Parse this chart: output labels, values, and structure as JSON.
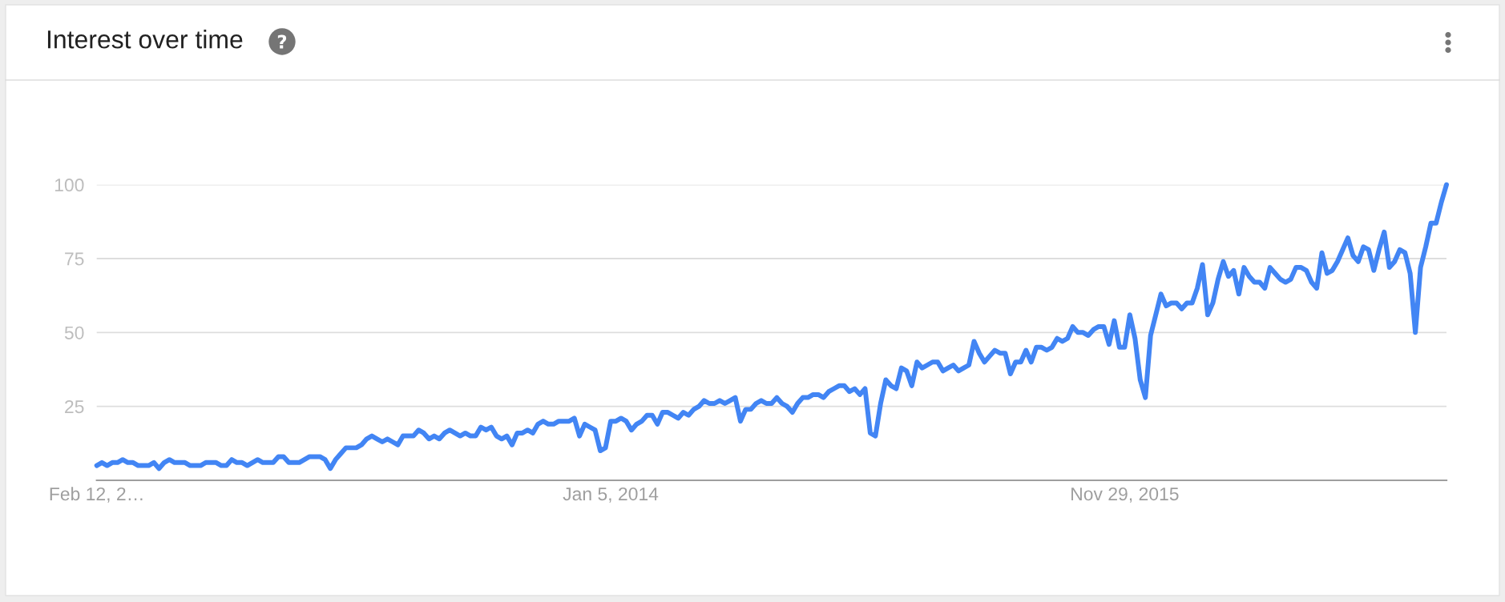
{
  "chart_data": {
    "type": "line",
    "title": "Interest over time",
    "x": [
      "2012-02-12",
      "2012-02-19",
      "2012-02-26",
      "2012-03-04",
      "2012-03-11",
      "2012-03-18",
      "2012-03-25",
      "2012-04-01",
      "2012-04-08",
      "2012-04-22",
      "2012-04-29",
      "2012-05-06",
      "2012-05-13",
      "2012-05-20",
      "2012-05-27",
      "2012-06-10",
      "2012-06-17",
      "2012-07-01",
      "2012-07-08",
      "2012-07-22",
      "2012-07-29",
      "2012-08-05",
      "2012-08-12",
      "2012-08-19",
      "2012-08-26",
      "2012-09-02",
      "2012-09-09",
      "2012-09-16",
      "2012-09-23",
      "2012-10-07",
      "2012-10-14",
      "2012-10-21",
      "2012-10-28",
      "2012-11-11",
      "2012-11-25",
      "2012-12-09",
      "2012-12-16",
      "2012-12-23",
      "2012-12-30",
      "2013-01-06",
      "2013-01-13",
      "2013-01-27",
      "2013-02-03",
      "2013-02-10",
      "2013-02-17",
      "2013-02-24",
      "2013-03-03",
      "2013-03-10",
      "2013-03-17",
      "2013-03-24",
      "2013-03-31",
      "2013-04-14",
      "2013-04-21",
      "2013-04-28",
      "2013-05-05",
      "2013-05-12",
      "2013-05-19",
      "2013-05-26",
      "2013-06-02",
      "2013-06-09",
      "2013-06-16",
      "2013-06-23",
      "2013-06-30",
      "2013-07-07",
      "2013-07-14",
      "2013-07-21",
      "2013-07-28",
      "2013-08-04",
      "2013-08-11",
      "2013-08-18",
      "2013-08-25",
      "2013-09-01",
      "2013-09-08",
      "2013-09-15",
      "2013-09-22",
      "2013-09-29",
      "2013-10-06",
      "2013-10-13",
      "2013-10-20",
      "2013-10-27",
      "2013-11-10",
      "2013-11-17",
      "2013-11-24",
      "2013-12-01",
      "2013-12-08",
      "2013-12-15",
      "2013-12-22",
      "2013-12-29",
      "2014-01-05",
      "2014-01-12",
      "2014-01-19",
      "2014-01-26",
      "2014-02-02",
      "2014-02-09",
      "2014-02-16",
      "2014-02-23",
      "2014-03-02",
      "2014-03-09",
      "2014-03-16",
      "2014-03-23",
      "2014-03-30",
      "2014-04-06",
      "2014-04-13",
      "2014-04-20",
      "2014-04-27",
      "2014-05-04",
      "2014-05-11",
      "2014-05-18",
      "2014-05-25",
      "2014-06-01",
      "2014-06-08",
      "2014-06-15",
      "2014-06-22",
      "2014-06-29",
      "2014-07-06",
      "2014-07-13",
      "2014-07-20",
      "2014-07-27",
      "2014-08-03",
      "2014-08-10",
      "2014-08-17",
      "2014-08-24",
      "2014-08-31",
      "2014-09-07",
      "2014-09-14",
      "2014-09-21",
      "2014-09-28",
      "2014-10-05",
      "2014-10-12",
      "2014-10-19",
      "2014-10-26",
      "2014-11-02",
      "2014-11-09",
      "2014-11-16",
      "2014-11-23",
      "2014-11-30",
      "2014-12-07",
      "2014-12-14",
      "2014-12-21",
      "2014-12-28",
      "2015-01-04",
      "2015-01-11",
      "2015-01-18",
      "2015-01-25",
      "2015-02-01",
      "2015-02-08",
      "2015-02-15",
      "2015-02-22",
      "2015-03-01",
      "2015-03-08",
      "2015-03-15",
      "2015-03-22",
      "2015-03-29",
      "2015-04-05",
      "2015-04-12",
      "2015-04-19",
      "2015-04-26",
      "2015-05-03",
      "2015-05-10",
      "2015-05-17",
      "2015-05-24",
      "2015-05-31",
      "2015-06-07",
      "2015-06-14",
      "2015-06-21",
      "2015-06-28",
      "2015-07-05",
      "2015-07-12",
      "2015-07-19",
      "2015-07-26",
      "2015-08-02",
      "2015-08-09",
      "2015-08-16",
      "2015-08-23",
      "2015-08-30",
      "2015-09-06",
      "2015-09-13",
      "2015-09-20",
      "2015-09-27",
      "2015-10-04",
      "2015-10-11",
      "2015-10-18",
      "2015-10-25",
      "2015-11-01",
      "2015-11-08",
      "2015-11-15",
      "2015-11-22",
      "2015-11-29",
      "2015-12-06",
      "2015-12-13",
      "2015-12-20",
      "2015-12-27",
      "2016-01-03",
      "2016-01-10",
      "2016-01-17",
      "2016-01-24",
      "2016-01-31",
      "2016-02-07",
      "2016-02-14",
      "2016-02-21",
      "2016-02-28",
      "2016-03-06",
      "2016-03-13",
      "2016-03-20",
      "2016-03-27",
      "2016-04-03",
      "2016-04-10",
      "2016-04-17",
      "2016-04-24",
      "2016-05-01",
      "2016-05-08",
      "2016-05-15",
      "2016-05-22",
      "2016-05-29",
      "2016-06-05",
      "2016-06-12",
      "2016-06-19",
      "2016-06-26",
      "2016-07-03",
      "2016-07-10",
      "2016-07-17",
      "2016-07-24",
      "2016-07-31",
      "2016-08-07",
      "2016-08-14",
      "2016-08-21",
      "2016-08-28",
      "2016-09-04",
      "2016-09-11",
      "2016-09-18",
      "2016-09-25",
      "2016-10-02",
      "2016-10-09",
      "2016-10-16",
      "2016-10-23",
      "2016-10-30",
      "2016-11-06",
      "2016-11-13",
      "2016-11-20",
      "2016-11-27",
      "2016-12-04",
      "2016-12-11",
      "2016-12-18",
      "2016-12-25",
      "2017-01-01",
      "2017-01-08",
      "2017-01-15",
      "2017-01-22",
      "2017-01-29",
      "2017-02-05"
    ],
    "values": [
      5,
      6,
      5,
      6,
      6,
      7,
      6,
      6,
      5,
      5,
      6,
      4,
      6,
      7,
      6,
      6,
      5,
      5,
      6,
      6,
      5,
      5,
      7,
      6,
      6,
      5,
      6,
      7,
      6,
      6,
      8,
      8,
      6,
      6,
      8,
      8,
      7,
      4,
      7,
      9,
      11,
      11,
      12,
      14,
      15,
      14,
      13,
      14,
      13,
      12,
      15,
      15,
      17,
      16,
      14,
      15,
      14,
      16,
      17,
      16,
      15,
      16,
      15,
      15,
      18,
      17,
      18,
      15,
      14,
      15,
      12,
      16,
      16,
      17,
      16,
      19,
      20,
      19,
      19,
      20,
      20,
      21,
      15,
      19,
      18,
      17,
      10,
      11,
      20,
      20,
      21,
      20,
      17,
      19,
      20,
      22,
      22,
      19,
      23,
      23,
      22,
      21,
      23,
      22,
      24,
      25,
      27,
      26,
      26,
      27,
      26,
      27,
      28,
      20,
      24,
      24,
      26,
      27,
      26,
      26,
      28,
      26,
      25,
      23,
      26,
      28,
      28,
      29,
      29,
      28,
      30,
      31,
      32,
      32,
      30,
      31,
      29,
      31,
      16,
      15,
      26,
      34,
      32,
      31,
      38,
      37,
      32,
      40,
      38,
      39,
      40,
      40,
      37,
      38,
      39,
      37,
      38,
      39,
      47,
      43,
      40,
      42,
      44,
      43,
      43,
      36,
      40,
      40,
      44,
      40,
      45,
      45,
      44,
      45,
      48,
      47,
      48,
      52,
      50,
      50,
      49,
      51,
      52,
      52,
      46,
      54,
      45,
      45,
      56,
      48,
      34,
      28,
      49,
      56,
      63,
      59,
      60,
      60,
      58,
      60,
      60,
      65,
      73,
      56,
      60,
      68,
      74,
      69,
      71,
      63,
      72,
      69,
      67,
      67,
      65,
      72,
      70,
      68,
      67,
      68,
      72,
      72,
      71,
      67,
      65,
      77,
      70,
      71,
      74,
      78,
      82,
      76,
      74,
      79,
      78,
      71,
      78,
      84,
      72,
      74,
      78,
      77,
      70,
      50,
      72,
      79,
      87,
      87,
      94,
      100
    ],
    "color": "#4285f4",
    "xlim": [
      "2012-02-12",
      "2017-02-05"
    ],
    "xticks": [
      {
        "value": "2012-02-12",
        "label": "Feb 12, 2…"
      },
      {
        "value": "2014-01-05",
        "label": "Jan 5, 2014"
      },
      {
        "value": "2015-11-29",
        "label": "Nov 29, 2015"
      }
    ],
    "ylim": [
      0,
      100
    ],
    "yticks": [
      25,
      50,
      75,
      100
    ],
    "grid": "y"
  }
}
